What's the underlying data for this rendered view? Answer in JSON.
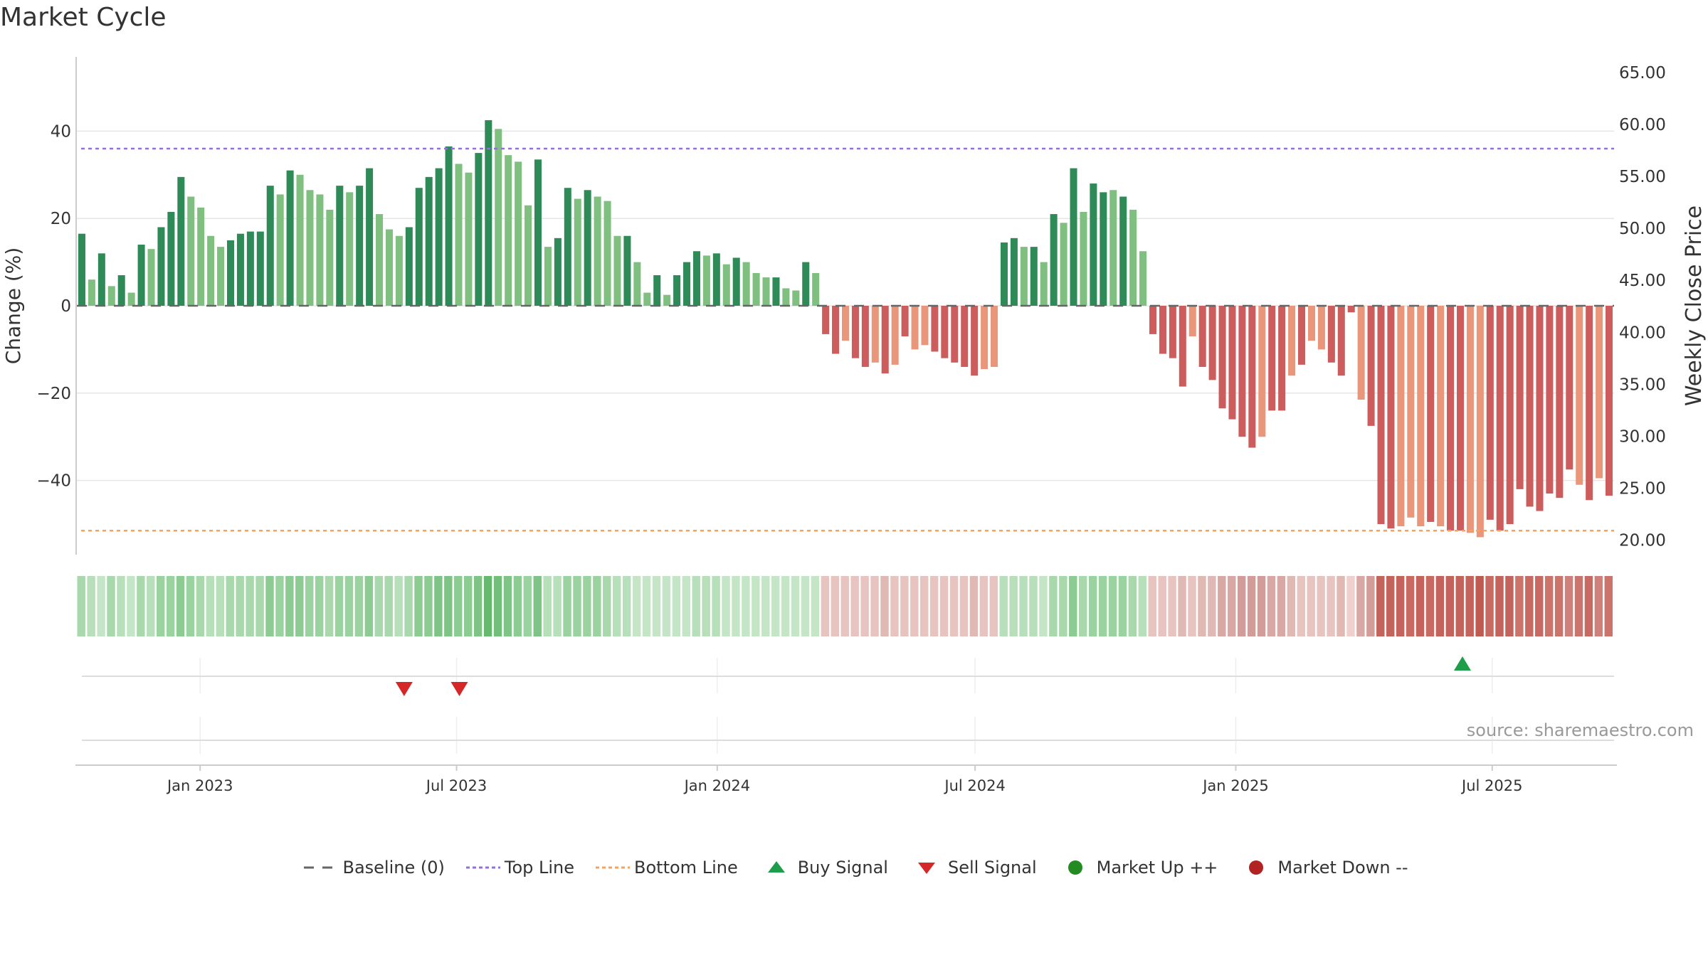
{
  "title": "Market Cycle",
  "source": "source: sharemaestro.com",
  "colors": {
    "up_dark": "#2e8b57",
    "up_light": "#7fbf7f",
    "down_dark": "#cd5c5c",
    "down_light": "#e9967a",
    "top_line": "#9370db",
    "bottom_line": "#f4a460",
    "baseline": "#666666",
    "buy": "#1e9e4a",
    "sell": "#d62728",
    "market_up": "#228b22",
    "market_down": "#b22222"
  },
  "legend": [
    {
      "label": "Baseline (0)",
      "symbol": "dash",
      "color": "#666666"
    },
    {
      "label": "Top Line",
      "symbol": "dot",
      "color": "#9370db"
    },
    {
      "label": "Bottom Line",
      "symbol": "dot",
      "color": "#f4a460"
    },
    {
      "label": "Buy Signal",
      "symbol": "triangle-up",
      "color": "#1e9e4a"
    },
    {
      "label": "Sell Signal",
      "symbol": "triangle-down",
      "color": "#d62728"
    },
    {
      "label": "Market Up ++",
      "symbol": "circle",
      "color": "#228b22"
    },
    {
      "label": "Market Down --",
      "symbol": "circle",
      "color": "#b22222"
    }
  ],
  "chart_data": {
    "type": "bar",
    "ylabel": "Change (%)",
    "ylabel_right": "Weekly Close Price",
    "ylim": [
      -57,
      57
    ],
    "yticks": [
      40,
      20,
      0,
      -20,
      -40
    ],
    "ytick_labels": [
      "40",
      "20",
      "0",
      "−20",
      "−40"
    ],
    "ylim_right": [
      18.6,
      66.5
    ],
    "yticks_right_labels": [
      "65.00",
      "60.00",
      "55.00",
      "50.00",
      "45.00",
      "40.00",
      "35.00",
      "30.00",
      "25.00",
      "20.00"
    ],
    "top_line": 36,
    "bottom_line": -51.5,
    "x_start": "2022-10-06",
    "x_end": "2025-09-25",
    "xticks": [
      "Jan 2023",
      "Jul 2023",
      "Jan 2024",
      "Jul 2024",
      "Jan 2025",
      "Jul 2025"
    ],
    "xtick_dates": [
      "2023-01-01",
      "2023-07-01",
      "2024-01-01",
      "2024-07-01",
      "2025-01-01",
      "2025-07-01"
    ],
    "values": [
      16.5,
      6,
      12,
      4.5,
      7,
      3,
      14,
      13,
      18,
      21.5,
      29.5,
      25,
      22.5,
      16,
      13.5,
      15,
      16.5,
      17,
      17,
      27.5,
      25.5,
      31,
      30,
      26.5,
      25.5,
      22,
      27.5,
      26,
      27.5,
      31.5,
      21,
      17.5,
      16,
      18,
      27,
      29.5,
      31.5,
      36.5,
      32.5,
      30.5,
      35,
      42.5,
      40.5,
      34.5,
      33,
      23,
      33.5,
      13.5,
      15.5,
      27,
      24.5,
      26.5,
      25,
      24,
      16,
      16,
      10,
      3,
      7,
      2.5,
      7,
      10,
      12.5,
      11.5,
      12,
      9.5,
      11,
      10,
      7.5,
      6.5,
      6.5,
      4,
      3.5,
      10,
      7.5,
      -6.5,
      -11,
      -8,
      -12,
      -14,
      -13,
      -15.5,
      -13.5,
      -7,
      -10,
      -9,
      -10.5,
      -12,
      -13,
      -14,
      -16,
      -14.5,
      -14,
      14.5,
      15.5,
      13.5,
      13.5,
      10,
      21,
      19,
      31.5,
      21.5,
      28,
      26,
      26.5,
      25,
      22,
      12.5,
      -6.5,
      -11,
      -12,
      -18.5,
      -7,
      -14,
      -17,
      -23.5,
      -26,
      -30,
      -32.5,
      -30,
      -24,
      -24,
      -16,
      -13.5,
      -8,
      -10,
      -13,
      -16,
      -1.5,
      -21.5,
      -27.5,
      -50,
      -51,
      -50.5,
      -48.5,
      -50.5,
      -49.5,
      -50.5,
      -51.5,
      -51.5,
      -52,
      -53,
      -49,
      -51.5,
      -50,
      -42,
      -46,
      -47,
      -43,
      -44,
      -37.5,
      -41,
      -44.5,
      -39.5,
      -43.5
    ],
    "bar_shades": [
      0,
      1,
      0,
      1,
      0,
      1,
      0,
      1,
      0,
      0,
      0,
      1,
      1,
      1,
      1,
      0,
      0,
      0,
      0,
      0,
      1,
      0,
      1,
      1,
      1,
      1,
      0,
      1,
      0,
      0,
      1,
      1,
      1,
      0,
      0,
      0,
      0,
      0,
      1,
      1,
      0,
      0,
      1,
      1,
      1,
      1,
      0,
      1,
      0,
      0,
      1,
      0,
      1,
      1,
      1,
      0,
      1,
      1,
      0,
      1,
      0,
      0,
      0,
      1,
      0,
      1,
      0,
      1,
      1,
      1,
      0,
      1,
      1,
      0,
      1,
      0,
      0,
      1,
      0,
      0,
      1,
      0,
      1,
      0,
      1,
      1,
      0,
      0,
      0,
      0,
      0,
      1,
      1,
      0,
      0,
      1,
      0,
      1,
      0,
      1,
      0,
      1,
      0,
      0,
      1,
      0,
      1,
      1,
      0,
      0,
      0,
      0,
      1,
      0,
      0,
      0,
      0,
      0,
      0,
      1,
      0,
      0,
      1,
      0,
      1,
      1,
      0,
      0,
      0,
      1,
      0,
      0,
      0,
      1,
      1,
      1,
      0,
      1,
      0,
      0,
      1,
      1,
      0,
      0,
      0,
      0,
      0,
      0,
      0,
      0,
      0,
      1,
      0,
      1,
      0,
      1,
      1,
      0,
      1,
      0
    ],
    "heat_colors": [
      "#a8d8ac",
      "#b6dfba",
      "#c4e6c6",
      "#a8d8ac",
      "#b6dfba",
      "#c4e6c6",
      "#a8d8ac",
      "#b6dfba",
      "#9ad2a0",
      "#9ad2a0",
      "#8ccb92",
      "#9ad2a0",
      "#a8d8ac",
      "#b6dfba",
      "#b6dfba",
      "#a8d8ac",
      "#a8d8ac",
      "#a8d8ac",
      "#a8d8ac",
      "#8ccb92",
      "#9ad2a0",
      "#8ccb92",
      "#8ccb92",
      "#9ad2a0",
      "#9ad2a0",
      "#a8d8ac",
      "#9ad2a0",
      "#9ad2a0",
      "#9ad2a0",
      "#8ccb92",
      "#a8d8ac",
      "#a8d8ac",
      "#b6dfba",
      "#a8d8ac",
      "#8ccb92",
      "#8ccb92",
      "#7fc486",
      "#7fc486",
      "#8ccb92",
      "#8ccb92",
      "#7fc486",
      "#66b96e",
      "#72bf7a",
      "#7fc486",
      "#8ccb92",
      "#9ad2a0",
      "#7fc486",
      "#b6dfba",
      "#b6dfba",
      "#9ad2a0",
      "#9ad2a0",
      "#9ad2a0",
      "#9ad2a0",
      "#a8d8ac",
      "#b6dfba",
      "#b6dfba",
      "#c4e6c6",
      "#c4e6c6",
      "#c4e6c6",
      "#c4e6c6",
      "#c4e6c6",
      "#c4e6c6",
      "#b6dfba",
      "#b6dfba",
      "#b6dfba",
      "#c4e6c6",
      "#c4e6c6",
      "#c4e6c6",
      "#c4e6c6",
      "#c4e6c6",
      "#c4e6c6",
      "#c4e6c6",
      "#c4e6c6",
      "#c4e6c6",
      "#c4e6c6",
      "#e8c4c0",
      "#e8c4c0",
      "#e8c4c0",
      "#e8c4c0",
      "#e8c4c0",
      "#e8c4c0",
      "#e0b8b4",
      "#e8c4c0",
      "#e8c4c0",
      "#e8c4c0",
      "#e8c4c0",
      "#e8c4c0",
      "#e8c4c0",
      "#e8c4c0",
      "#e8c4c0",
      "#e0b8b4",
      "#e8c4c0",
      "#e8c4c0",
      "#b6dfba",
      "#b6dfba",
      "#b6dfba",
      "#b6dfba",
      "#c4e6c6",
      "#a8d8ac",
      "#a8d8ac",
      "#8ccb92",
      "#a8d8ac",
      "#9ad2a0",
      "#9ad2a0",
      "#9ad2a0",
      "#9ad2a0",
      "#a8d8ac",
      "#b6dfba",
      "#e8c4c0",
      "#e8c4c0",
      "#e8c4c0",
      "#e0b8b4",
      "#e8c4c0",
      "#e0b8b4",
      "#e0b8b4",
      "#daa8a4",
      "#daa8a4",
      "#d49c98",
      "#d49c98",
      "#d49c98",
      "#daa8a4",
      "#daa8a4",
      "#e0b8b4",
      "#e8c4c0",
      "#e8c4c0",
      "#e8c4c0",
      "#e8c4c0",
      "#e0b8b4",
      "#f0d0cc",
      "#daa8a4",
      "#d49c98",
      "#c4635b",
      "#c4635b",
      "#c4635b",
      "#c86a62",
      "#c4635b",
      "#c86a62",
      "#c4635b",
      "#c4635b",
      "#c4635b",
      "#c4635b",
      "#be5a52",
      "#c86a62",
      "#c4635b",
      "#c4635b",
      "#cc746c",
      "#c86a62",
      "#c86a62",
      "#cc746c",
      "#cc746c",
      "#d0807a",
      "#cc746c",
      "#c86a62",
      "#d0807a",
      "#cc746c"
    ],
    "buy_signals": [
      {
        "date": "2025-06-10",
        "value": 1
      }
    ],
    "sell_signals": [
      {
        "date": "2023-05-25",
        "value": 1
      },
      {
        "date": "2023-07-03",
        "value": 1
      }
    ],
    "grid": true
  }
}
